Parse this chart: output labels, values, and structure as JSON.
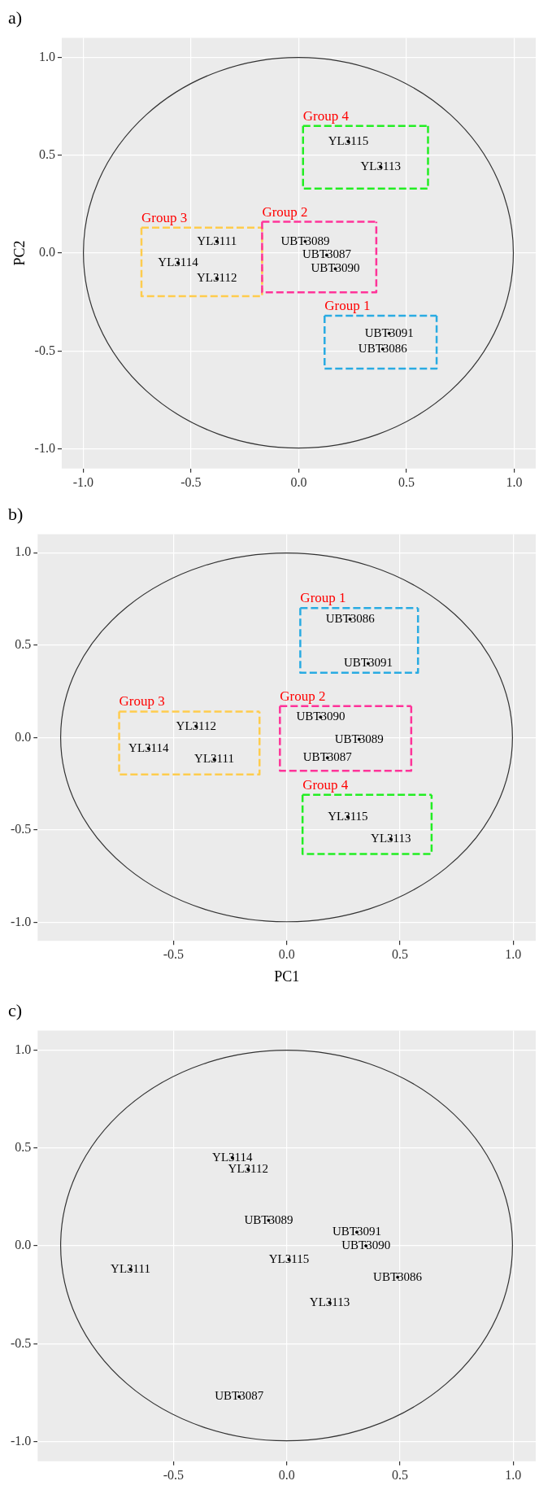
{
  "chart_data": [
    {
      "type": "scatter",
      "title": "a)",
      "ylabel": "PC2",
      "xlim": [
        -1.1,
        1.1
      ],
      "ylim": [
        -1.1,
        1.1
      ],
      "xticks": [
        {
          "value": -1,
          "label": "-1.0"
        },
        {
          "value": -0.5,
          "label": "-0.5"
        },
        {
          "value": 0,
          "label": "0.0"
        },
        {
          "value": 0.5,
          "label": "0.5"
        },
        {
          "value": 1,
          "label": "1.0"
        }
      ],
      "yticks": [
        {
          "value": -1,
          "label": "-1.0"
        },
        {
          "value": -0.5,
          "label": "-0.5"
        },
        {
          "value": 0,
          "label": "0.0"
        },
        {
          "value": 0.5,
          "label": "0.5"
        },
        {
          "value": 1,
          "label": "1.0"
        }
      ],
      "grid": true,
      "marker": "none",
      "series": [
        {
          "type": "line",
          "name": "Group 1",
          "line_style": "dashed",
          "color": "#29abe2",
          "x": [
            0.12,
            0.12,
            0.64,
            0.64
          ],
          "values": [
            -0.32,
            -0.59,
            -0.59,
            -0.32
          ]
        },
        {
          "type": "line",
          "line_style": "dashed",
          "color": "#29abe2",
          "x": [
            0.12,
            0.64
          ],
          "values": [
            -0.32,
            -0.32
          ]
        },
        {
          "type": "line",
          "name": "Group 2",
          "line_style": "dashed",
          "color": "#ff3399",
          "x": [
            -0.17,
            -0.17,
            0.36,
            0.36
          ],
          "values": [
            0.16,
            -0.2,
            -0.2,
            0.16
          ]
        },
        {
          "type": "line",
          "line_style": "dashed",
          "color": "#ff3399",
          "x": [
            -0.17,
            0.36
          ],
          "values": [
            0.16,
            0.16
          ]
        },
        {
          "type": "line",
          "name": "Group 3",
          "line_style": "dashed",
          "color": "#ffcc4d",
          "x": [
            -0.73,
            -0.73,
            -0.17,
            -0.17
          ],
          "values": [
            0.13,
            -0.22,
            -0.22,
            0.13
          ]
        },
        {
          "type": "line",
          "line_style": "dashed",
          "color": "#ffcc4d",
          "x": [
            -0.73,
            -0.17
          ],
          "values": [
            0.13,
            0.13
          ]
        },
        {
          "type": "line",
          "name": "Group 4",
          "line_style": "dashed",
          "color": "#22ee22",
          "x": [
            0.02,
            0.02,
            0.6,
            0.6
          ],
          "values": [
            0.65,
            0.33,
            0.33,
            0.65
          ]
        },
        {
          "type": "line",
          "line_style": "dashed",
          "color": "#22ee22",
          "x": [
            0.02,
            0.6
          ],
          "values": [
            0.65,
            0.65
          ]
        },
        {
          "type": "scatter",
          "marker": "circle",
          "color": "#000000",
          "x": [
            0.23,
            0.38,
            0.03,
            0.13,
            0.17,
            0.42,
            0.39,
            -0.38,
            -0.56,
            -0.38
          ],
          "values": [
            0.57,
            0.44,
            0.06,
            -0.01,
            -0.08,
            -0.41,
            -0.49,
            0.06,
            -0.05,
            -0.13
          ],
          "value_labels": [
            "YL3115",
            "YL3113",
            "UBT3089",
            "UBT3087",
            "UBT3090",
            "UBT3091",
            "UBT3086",
            "YL3111",
            "YL3114",
            "YL3112"
          ]
        }
      ]
    },
    {
      "type": "scatter",
      "title": "b)",
      "xlabel": "PC1",
      "xlim": [
        -1.1,
        1.1
      ],
      "ylim": [
        -1.1,
        1.1
      ],
      "xticks": [
        {
          "value": -0.5,
          "label": "-0.5"
        },
        {
          "value": 0,
          "label": "0.0"
        },
        {
          "value": 0.5,
          "label": "0.5"
        },
        {
          "value": 1,
          "label": "1.0"
        }
      ],
      "yticks": [
        {
          "value": -1,
          "label": "-1.0"
        },
        {
          "value": -0.5,
          "label": "-0.5"
        },
        {
          "value": 0,
          "label": "0.0"
        },
        {
          "value": 0.5,
          "label": "0.5"
        },
        {
          "value": 1,
          "label": "1.0"
        }
      ],
      "grid": true,
      "marker": "none",
      "series": [
        {
          "type": "line",
          "name": "Group 1",
          "line_style": "dashed",
          "color": "#29abe2",
          "x": [
            0.06,
            0.06,
            0.58,
            0.58
          ],
          "values": [
            0.7,
            0.35,
            0.35,
            0.7
          ]
        },
        {
          "type": "line",
          "line_style": "dashed",
          "color": "#29abe2",
          "x": [
            0.06,
            0.58
          ],
          "values": [
            0.7,
            0.7
          ]
        },
        {
          "type": "line",
          "name": "Group 2",
          "line_style": "dashed",
          "color": "#ff3399",
          "x": [
            -0.03,
            -0.03,
            0.55,
            0.55
          ],
          "values": [
            0.17,
            -0.18,
            -0.18,
            0.17
          ]
        },
        {
          "type": "line",
          "line_style": "dashed",
          "color": "#ff3399",
          "x": [
            -0.03,
            0.55
          ],
          "values": [
            0.17,
            0.17
          ]
        },
        {
          "type": "line",
          "name": "Group 3",
          "line_style": "dashed",
          "color": "#ffcc4d",
          "x": [
            -0.74,
            -0.74,
            -0.12,
            -0.12
          ],
          "values": [
            0.14,
            -0.2,
            -0.2,
            0.14
          ]
        },
        {
          "type": "line",
          "line_style": "dashed",
          "color": "#ffcc4d",
          "x": [
            -0.74,
            -0.12
          ],
          "values": [
            0.14,
            0.14
          ]
        },
        {
          "type": "line",
          "name": "Group 4",
          "line_style": "dashed",
          "color": "#22ee22",
          "x": [
            0.07,
            0.07,
            0.64,
            0.64
          ],
          "values": [
            -0.31,
            -0.63,
            -0.63,
            -0.31
          ]
        },
        {
          "type": "line",
          "line_style": "dashed",
          "color": "#22ee22",
          "x": [
            0.07,
            0.64
          ],
          "values": [
            -0.31,
            -0.31
          ]
        },
        {
          "type": "scatter",
          "marker": "circle",
          "color": "#000000",
          "x": [
            0.28,
            0.36,
            0.15,
            0.32,
            0.18,
            0.27,
            0.46,
            -0.4,
            -0.61,
            -0.32
          ],
          "values": [
            0.64,
            0.4,
            0.11,
            -0.01,
            -0.11,
            -0.43,
            -0.55,
            0.06,
            -0.06,
            -0.12
          ],
          "value_labels": [
            "UBT3086",
            "UBT3091",
            "UBT3090",
            "UBT3089",
            "UBT3087",
            "YL3115",
            "YL3113",
            "YL3112",
            "YL3114",
            "YL3111"
          ]
        }
      ]
    },
    {
      "type": "scatter",
      "title": "c)",
      "xlim": [
        -1.1,
        1.1
      ],
      "ylim": [
        -1.1,
        1.1
      ],
      "xticks": [
        {
          "value": -0.5,
          "label": "-0.5"
        },
        {
          "value": 0,
          "label": "0.0"
        },
        {
          "value": 0.5,
          "label": "0.5"
        },
        {
          "value": 1,
          "label": "1.0"
        }
      ],
      "yticks": [
        {
          "value": -1,
          "label": "-1.0"
        },
        {
          "value": -0.5,
          "label": "-0.5"
        },
        {
          "value": 0,
          "label": "0.0"
        },
        {
          "value": 0.5,
          "label": "0.5"
        },
        {
          "value": 1,
          "label": "1.0"
        }
      ],
      "grid": true,
      "series": [
        {
          "type": "scatter",
          "marker": "circle",
          "color": "#000000",
          "x": [
            -0.24,
            -0.17,
            -0.08,
            0.31,
            0.35,
            0.49,
            0.01,
            0.19,
            -0.21,
            -0.69
          ],
          "values": [
            0.45,
            0.39,
            0.13,
            0.07,
            0.0,
            -0.16,
            -0.07,
            -0.29,
            -0.77,
            -0.12
          ],
          "value_labels": [
            "YL3114",
            "YL3112",
            "UBT3089",
            "UBT3091",
            "UBT3090",
            "UBT3086",
            "YL3115",
            "YL3113",
            "UBT3087",
            "YL3111"
          ]
        }
      ]
    }
  ]
}
